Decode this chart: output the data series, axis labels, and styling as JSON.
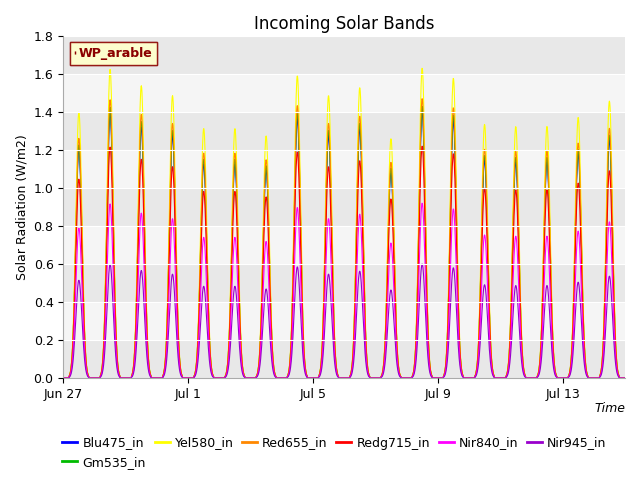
{
  "title": "Incoming Solar Bands",
  "ylabel": "Solar Radiation (W/m2)",
  "xlabel": "Time",
  "legend_label": "WP_arable",
  "ylim": [
    0,
    1.8
  ],
  "x_tick_labels": [
    "Jun 27",
    "Jul 1",
    "Jul 5",
    "Jul 9",
    "Jul 13"
  ],
  "x_tick_positions": [
    0,
    4,
    8,
    12,
    16
  ],
  "series": [
    {
      "name": "Blu475_in",
      "color": "#0000ff",
      "peak": 1.4
    },
    {
      "name": "Gm535_in",
      "color": "#00bb00",
      "peak": 1.43
    },
    {
      "name": "Yel580_in",
      "color": "#ffff00",
      "peak": 1.63
    },
    {
      "name": "Red655_in",
      "color": "#ff8800",
      "peak": 1.47
    },
    {
      "name": "Redg715_in",
      "color": "#ff0000",
      "peak": 1.22
    },
    {
      "name": "Nir840_in",
      "color": "#ff00ff",
      "peak": 0.92
    },
    {
      "name": "Nir945_in",
      "color": "#9900cc",
      "peak": 0.6
    }
  ],
  "n_days": 18,
  "plot_bg_colors": [
    "#e8e8e8",
    "#f5f5f5"
  ],
  "title_fontsize": 12,
  "axis_fontsize": 9,
  "legend_fontsize": 9,
  "yticks": [
    0.0,
    0.2,
    0.4,
    0.6,
    0.8,
    1.0,
    1.2,
    1.4,
    1.6,
    1.8
  ]
}
